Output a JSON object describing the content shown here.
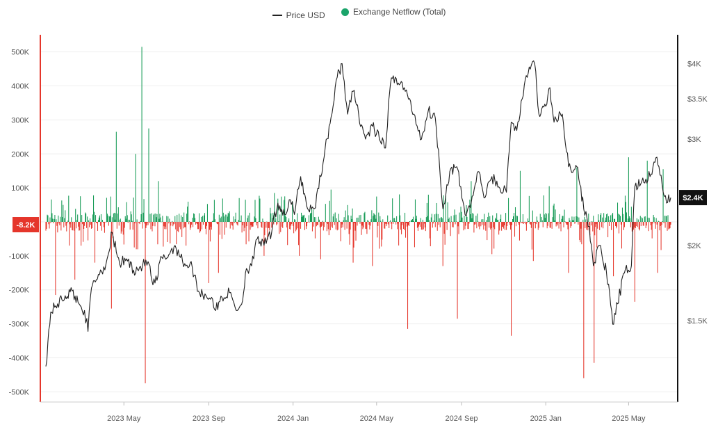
{
  "legend": {
    "price_label": "Price USD",
    "netflow_label": "Exchange Netflow (Total)"
  },
  "colors": {
    "price_line": "#1f1f1f",
    "inflow": "#159a55",
    "outflow": "#e5362b",
    "left_axis": "#e5362b",
    "right_axis": "#111111",
    "legend_dot": "#1aa46a",
    "grid": "#eeeeee"
  },
  "chart_data": {
    "type": "bar+line",
    "x_range": [
      "2023-01-08",
      "2025-07-01"
    ],
    "x_tick_labels": [
      "2023 May",
      "2023 Sep",
      "2024 Jan",
      "2024 May",
      "2024 Sep",
      "2025 Jan",
      "2025 May"
    ],
    "x_tick_dates": [
      "2023-05-01",
      "2023-09-01",
      "2024-01-01",
      "2024-05-01",
      "2024-09-01",
      "2025-01-01",
      "2025-05-01"
    ],
    "left_axis": {
      "range": [
        -530000,
        530000
      ],
      "tick_values": [
        500000,
        400000,
        300000,
        200000,
        100000,
        0,
        -100000,
        -200000,
        -300000,
        -400000,
        -500000
      ],
      "tick_labels": [
        "500K",
        "400K",
        "300K",
        "200K",
        "100K",
        "0",
        "-100K",
        "-200K",
        "-300K",
        "-400K",
        "-500K"
      ]
    },
    "right_axis": {
      "scale": "log",
      "range": [
        1100,
        4350
      ],
      "tick_values": [
        4000,
        3500,
        3000,
        2000,
        1500
      ],
      "tick_labels": [
        "$4K",
        "$3.5K",
        "$3K",
        "$2K",
        "$1.5K"
      ]
    },
    "current_netflow_label": "-8.2K",
    "current_price_label": "$2.4K",
    "price_series": {
      "name": "Price USD",
      "points": [
        [
          "2023-01-08",
          1260
        ],
        [
          "2023-01-15",
          1550
        ],
        [
          "2023-01-25",
          1600
        ],
        [
          "2023-02-05",
          1650
        ],
        [
          "2023-02-15",
          1680
        ],
        [
          "2023-02-25",
          1600
        ],
        [
          "2023-03-05",
          1560
        ],
        [
          "2023-03-10",
          1440
        ],
        [
          "2023-03-15",
          1700
        ],
        [
          "2023-03-25",
          1790
        ],
        [
          "2023-04-05",
          1860
        ],
        [
          "2023-04-14",
          2100
        ],
        [
          "2023-04-20",
          1950
        ],
        [
          "2023-04-25",
          1860
        ],
        [
          "2023-05-05",
          1900
        ],
        [
          "2023-05-15",
          1820
        ],
        [
          "2023-05-28",
          1850
        ],
        [
          "2023-06-05",
          1880
        ],
        [
          "2023-06-12",
          1720
        ],
        [
          "2023-06-18",
          1750
        ],
        [
          "2023-06-22",
          1880
        ],
        [
          "2023-07-05",
          1930
        ],
        [
          "2023-07-14",
          2000
        ],
        [
          "2023-07-25",
          1880
        ],
        [
          "2023-08-08",
          1840
        ],
        [
          "2023-08-17",
          1680
        ],
        [
          "2023-08-28",
          1650
        ],
        [
          "2023-09-05",
          1640
        ],
        [
          "2023-09-11",
          1560
        ],
        [
          "2023-09-20",
          1640
        ],
        [
          "2023-10-01",
          1670
        ],
        [
          "2023-10-12",
          1560
        ],
        [
          "2023-10-20",
          1620
        ],
        [
          "2023-10-24",
          1800
        ],
        [
          "2023-11-05",
          1900
        ],
        [
          "2023-11-10",
          2050
        ],
        [
          "2023-11-20",
          2000
        ],
        [
          "2023-12-01",
          2100
        ],
        [
          "2023-12-10",
          2350
        ],
        [
          "2023-12-20",
          2250
        ],
        [
          "2023-12-28",
          2380
        ],
        [
          "2024-01-03",
          2250
        ],
        [
          "2024-01-12",
          2600
        ],
        [
          "2024-01-22",
          2300
        ],
        [
          "2024-02-01",
          2300
        ],
        [
          "2024-02-15",
          2800
        ],
        [
          "2024-02-28",
          3400
        ],
        [
          "2024-03-05",
          3800
        ],
        [
          "2024-03-12",
          4000
        ],
        [
          "2024-03-20",
          3300
        ],
        [
          "2024-03-28",
          3600
        ],
        [
          "2024-04-05",
          3300
        ],
        [
          "2024-04-15",
          3000
        ],
        [
          "2024-04-25",
          3150
        ],
        [
          "2024-05-05",
          3000
        ],
        [
          "2024-05-14",
          2900
        ],
        [
          "2024-05-21",
          3700
        ],
        [
          "2024-05-28",
          3800
        ],
        [
          "2024-06-10",
          3650
        ],
        [
          "2024-06-24",
          3300
        ],
        [
          "2024-07-05",
          3000
        ],
        [
          "2024-07-15",
          3350
        ],
        [
          "2024-07-25",
          3250
        ],
        [
          "2024-08-05",
          2300
        ],
        [
          "2024-08-15",
          2650
        ],
        [
          "2024-08-25",
          2700
        ],
        [
          "2024-09-06",
          2250
        ],
        [
          "2024-09-15",
          2350
        ],
        [
          "2024-09-25",
          2650
        ],
        [
          "2024-10-05",
          2400
        ],
        [
          "2024-10-15",
          2600
        ],
        [
          "2024-10-25",
          2500
        ],
        [
          "2024-11-05",
          2450
        ],
        [
          "2024-11-12",
          3200
        ],
        [
          "2024-11-20",
          3100
        ],
        [
          "2024-11-28",
          3500
        ],
        [
          "2024-12-08",
          3950
        ],
        [
          "2024-12-16",
          4000
        ],
        [
          "2024-12-22",
          3300
        ],
        [
          "2025-01-01",
          3400
        ],
        [
          "2025-01-07",
          3650
        ],
        [
          "2025-01-13",
          3200
        ],
        [
          "2025-01-25",
          3300
        ],
        [
          "2025-02-03",
          2700
        ],
        [
          "2025-02-15",
          2700
        ],
        [
          "2025-02-25",
          2300
        ],
        [
          "2025-03-05",
          2150
        ],
        [
          "2025-03-11",
          1850
        ],
        [
          "2025-03-20",
          2000
        ],
        [
          "2025-03-30",
          1800
        ],
        [
          "2025-04-08",
          1480
        ],
        [
          "2025-04-15",
          1600
        ],
        [
          "2025-04-25",
          1800
        ],
        [
          "2025-05-05",
          1850
        ],
        [
          "2025-05-10",
          2500
        ],
        [
          "2025-05-20",
          2550
        ],
        [
          "2025-06-01",
          2600
        ],
        [
          "2025-06-11",
          2800
        ],
        [
          "2025-06-20",
          2450
        ],
        [
          "2025-06-25",
          2350
        ],
        [
          "2025-07-01",
          2400
        ]
      ]
    },
    "netflow_series": {
      "name": "Exchange Netflow (Total)",
      "spikes": [
        [
          "2023-01-22",
          -215000
        ],
        [
          "2023-02-19",
          -170000
        ],
        [
          "2023-03-20",
          -120000
        ],
        [
          "2023-04-13",
          -255000
        ],
        [
          "2023-04-20",
          265000
        ],
        [
          "2023-05-18",
          200000
        ],
        [
          "2023-05-27",
          515000
        ],
        [
          "2023-06-01",
          -475000
        ],
        [
          "2023-06-06",
          275000
        ],
        [
          "2023-06-20",
          120000
        ],
        [
          "2023-07-30",
          -70000
        ],
        [
          "2023-09-01",
          -180000
        ],
        [
          "2023-09-15",
          -150000
        ],
        [
          "2023-10-15",
          70000
        ],
        [
          "2023-11-20",
          -100000
        ],
        [
          "2023-12-05",
          85000
        ],
        [
          "2024-01-10",
          -100000
        ],
        [
          "2024-02-10",
          -110000
        ],
        [
          "2024-02-25",
          95000
        ],
        [
          "2024-03-28",
          -120000
        ],
        [
          "2024-04-25",
          -130000
        ],
        [
          "2024-06-15",
          -315000
        ],
        [
          "2024-07-15",
          80000
        ],
        [
          "2024-08-05",
          -130000
        ],
        [
          "2024-08-26",
          -285000
        ],
        [
          "2024-09-15",
          120000
        ],
        [
          "2024-10-15",
          -95000
        ],
        [
          "2024-11-12",
          -335000
        ],
        [
          "2024-11-25",
          150000
        ],
        [
          "2024-12-14",
          -115000
        ],
        [
          "2025-01-06",
          105000
        ],
        [
          "2025-02-03",
          -150000
        ],
        [
          "2025-02-15",
          160000
        ],
        [
          "2025-02-25",
          -460000
        ],
        [
          "2025-03-12",
          -415000
        ],
        [
          "2025-04-09",
          -160000
        ],
        [
          "2025-05-01",
          190000
        ],
        [
          "2025-05-10",
          -235000
        ],
        [
          "2025-05-28",
          180000
        ],
        [
          "2025-06-12",
          -150000
        ],
        [
          "2025-06-20",
          155000
        ],
        [
          "2025-07-01",
          -8200
        ]
      ]
    }
  }
}
